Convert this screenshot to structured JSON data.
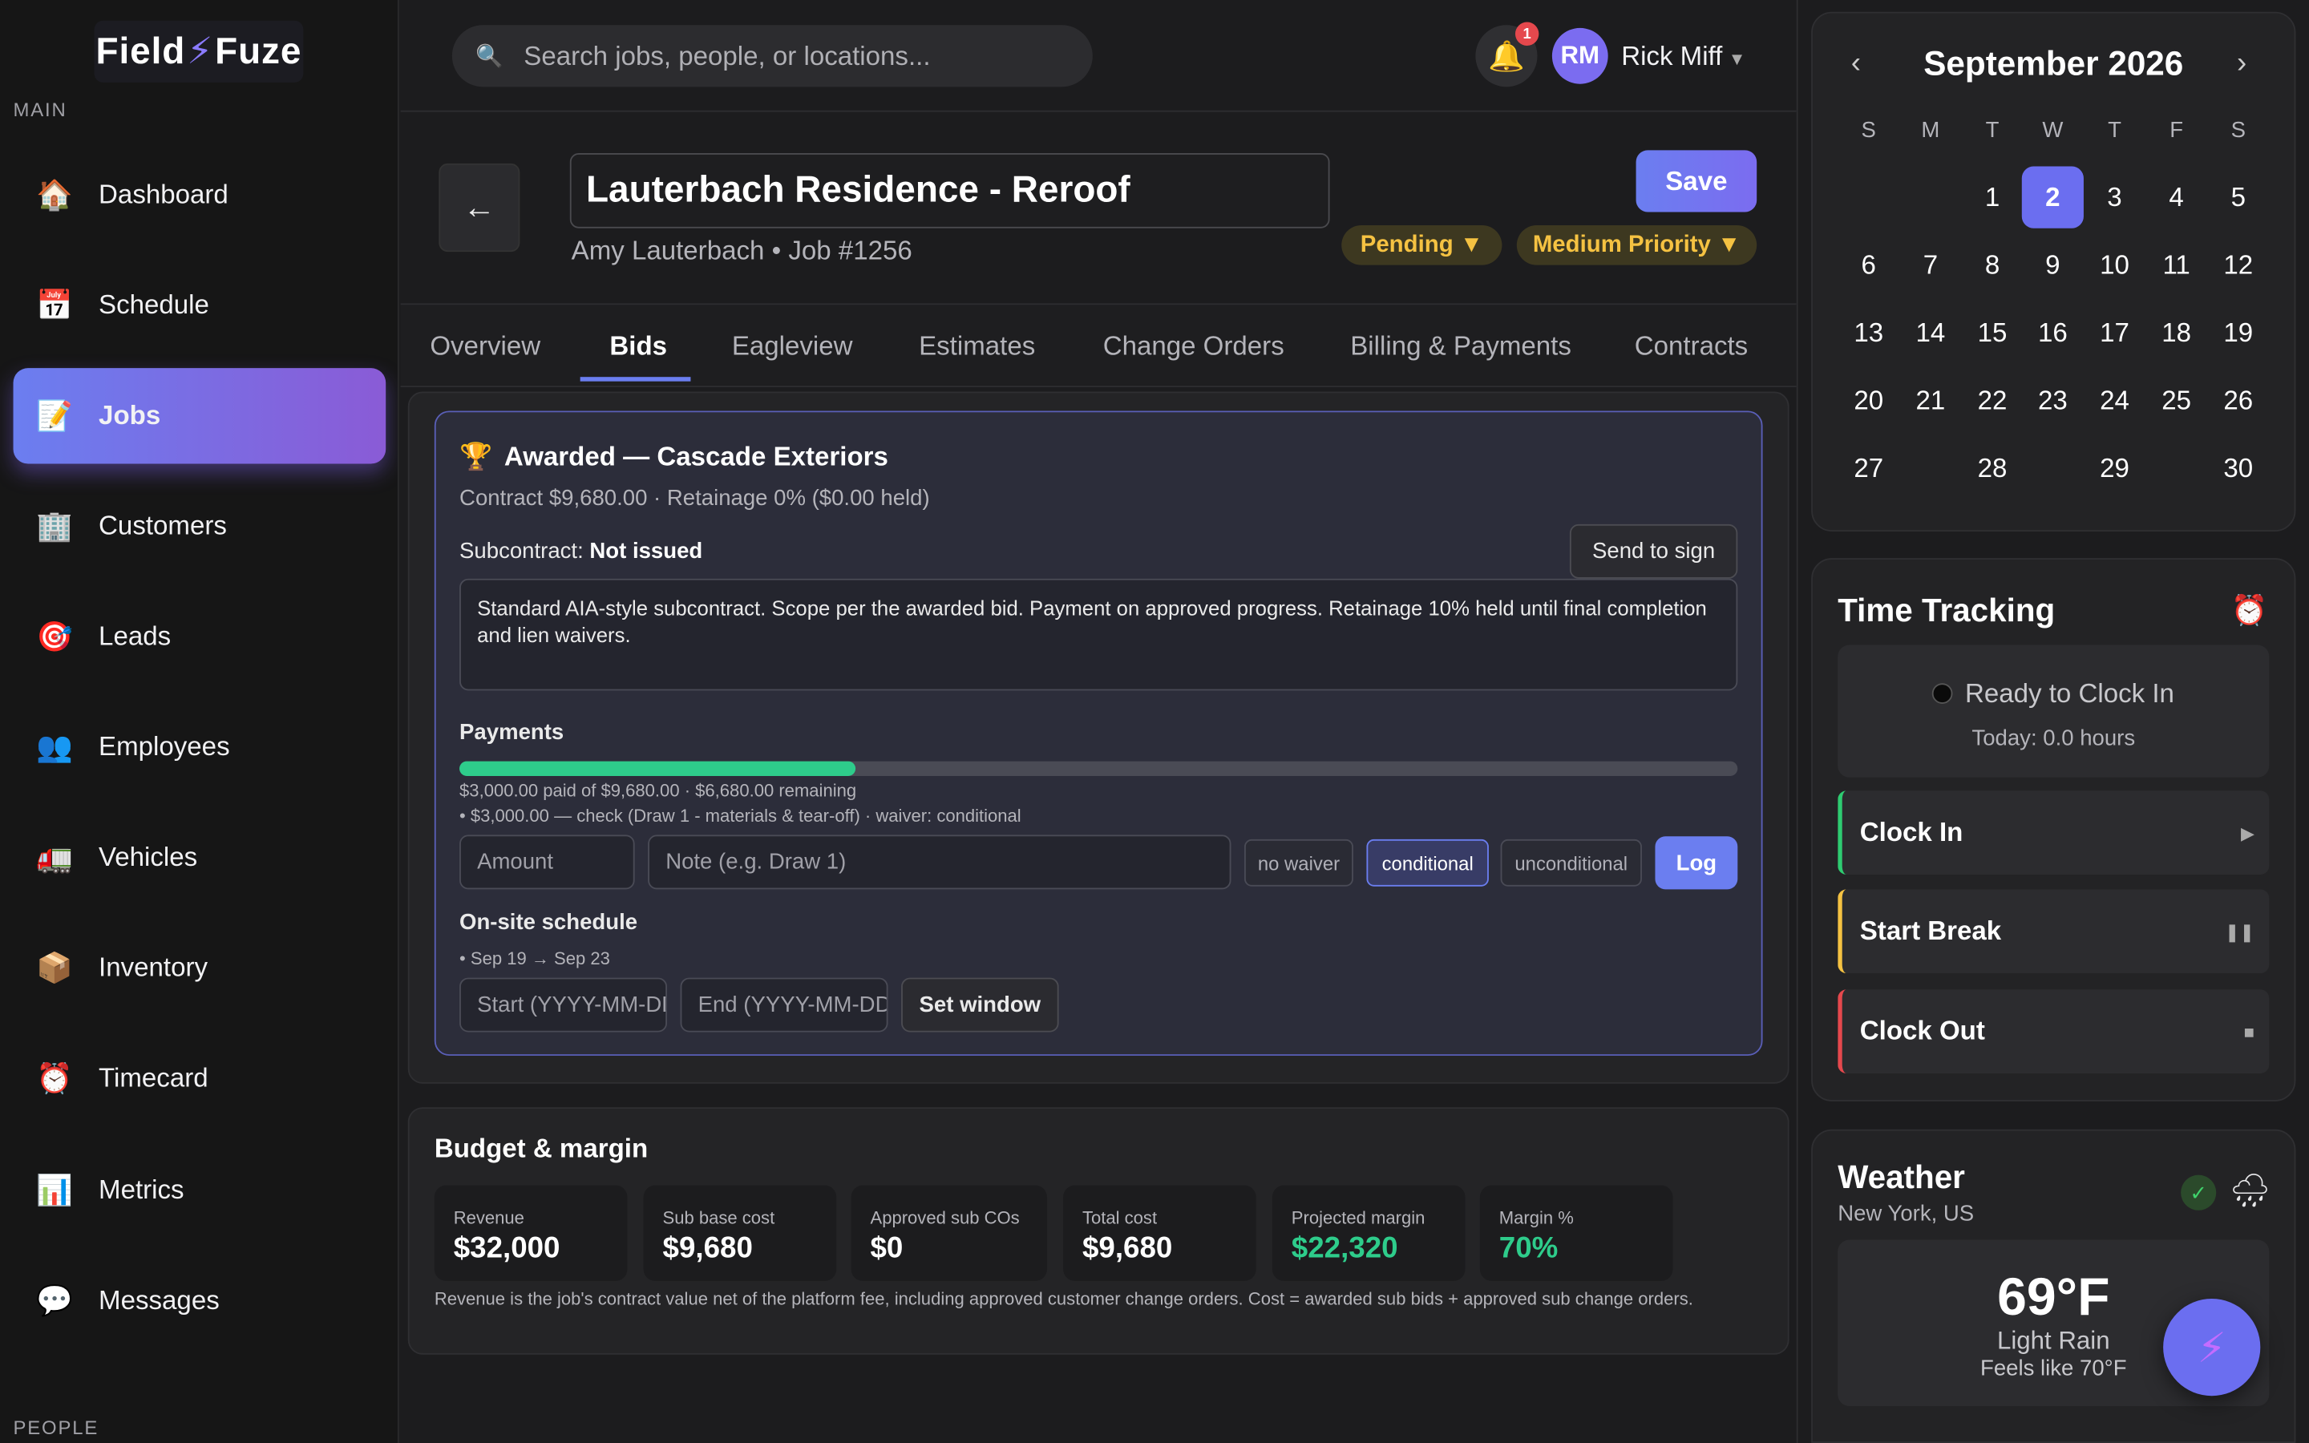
{
  "app": {
    "logo_left": "Field",
    "logo_right": "Fuze"
  },
  "sidebar": {
    "section_main": "MAIN",
    "section_people": "PEOPLE",
    "items": [
      {
        "label": "Dashboard",
        "icon": "🏠"
      },
      {
        "label": "Schedule",
        "icon": "📅"
      },
      {
        "label": "Jobs",
        "icon": "📝"
      },
      {
        "label": "Customers",
        "icon": "🏢"
      },
      {
        "label": "Leads",
        "icon": "🎯"
      },
      {
        "label": "Employees",
        "icon": "👥"
      },
      {
        "label": "Vehicles",
        "icon": "🚛"
      },
      {
        "label": "Inventory",
        "icon": "📦"
      },
      {
        "label": "Timecard",
        "icon": "⏰"
      },
      {
        "label": "Metrics",
        "icon": "📊"
      },
      {
        "label": "Messages",
        "icon": "💬"
      }
    ],
    "active": "Jobs"
  },
  "topbar": {
    "search_placeholder": "Search jobs, people, or locations...",
    "notifications_count": "1",
    "user_initials": "RM",
    "user_name": "Rick Miff"
  },
  "job": {
    "title": "Lauterbach Residence - Reroof",
    "subtitle": "Amy Lauterbach • Job #1256",
    "save_label": "Save",
    "status": "Pending ▼",
    "priority": "Medium Priority ▼"
  },
  "tabs": [
    "Overview",
    "Bids",
    "Eagleview",
    "Estimates",
    "Change Orders",
    "Billing & Payments",
    "Contracts"
  ],
  "active_tab": "Bids",
  "award": {
    "title": "Awarded — Cascade Exteriors",
    "contract_line": "Contract $9,680.00 · Retainage 0% ($0.00 held)",
    "subcontract_label": "Subcontract:",
    "subcontract_status": "Not issued",
    "send_to_sign": "Send to sign",
    "subcontract_text": "Standard AIA-style subcontract. Scope per the awarded bid. Payment on approved progress. Retainage 10% held until final completion and lien waivers.",
    "payments_heading": "Payments",
    "paid_fraction": 0.31,
    "paid_summary": "$3,000.00 paid of $9,680.00 · $6,680.00 remaining",
    "payment_entry": "• $3,000.00 — check (Draw 1 - materials & tear-off) · waiver: conditional",
    "amount_placeholder": "Amount",
    "note_placeholder": "Note (e.g. Draw 1)",
    "waiver_options": [
      "no waiver",
      "conditional",
      "unconditional"
    ],
    "waiver_selected": "conditional",
    "log_label": "Log",
    "schedule_heading": "On-site schedule",
    "schedule_entry": "• Sep 19 → Sep 23",
    "start_placeholder": "Start (YYYY-MM-DD)",
    "end_placeholder": "End (YYYY-MM-DD)",
    "set_window_label": "Set window"
  },
  "budget": {
    "heading": "Budget & margin",
    "metrics": [
      {
        "label": "Revenue",
        "value": "$32,000"
      },
      {
        "label": "Sub base cost",
        "value": "$9,680"
      },
      {
        "label": "Approved sub COs",
        "value": "$0"
      },
      {
        "label": "Total cost",
        "value": "$9,680"
      },
      {
        "label": "Projected margin",
        "value": "$22,320"
      },
      {
        "label": "Margin %",
        "value": "70%"
      }
    ],
    "note": "Revenue is the job's contract value net of the platform fee, including approved customer change orders. Cost = awarded sub bids + approved sub change orders."
  },
  "calendar": {
    "month_label": "September 2026",
    "weekdays": [
      "S",
      "M",
      "T",
      "W",
      "T",
      "F",
      "S"
    ],
    "today": "2",
    "days": [
      "1",
      "2",
      "3",
      "4",
      "5",
      "6",
      "7",
      "8",
      "9",
      "10",
      "11",
      "12",
      "13",
      "14",
      "15",
      "16",
      "17",
      "18",
      "19",
      "20",
      "21",
      "22",
      "23",
      "24",
      "25",
      "26",
      "27",
      "28",
      "29",
      "30"
    ]
  },
  "time_tracking": {
    "heading": "Time Tracking",
    "status": "Ready to Clock In",
    "today": "Today: 0.0 hours",
    "clock_in": "Clock In",
    "start_break": "Start Break",
    "clock_out": "Clock Out",
    "colors": {
      "clock_in": "#2ecc71",
      "start_break": "#f5c242",
      "clock_out": "#e5484d"
    }
  },
  "weather": {
    "heading": "Weather",
    "location": "New York, US",
    "temp": "69°F",
    "condition": "Light Rain",
    "feels_like": "Feels like 70°F"
  }
}
